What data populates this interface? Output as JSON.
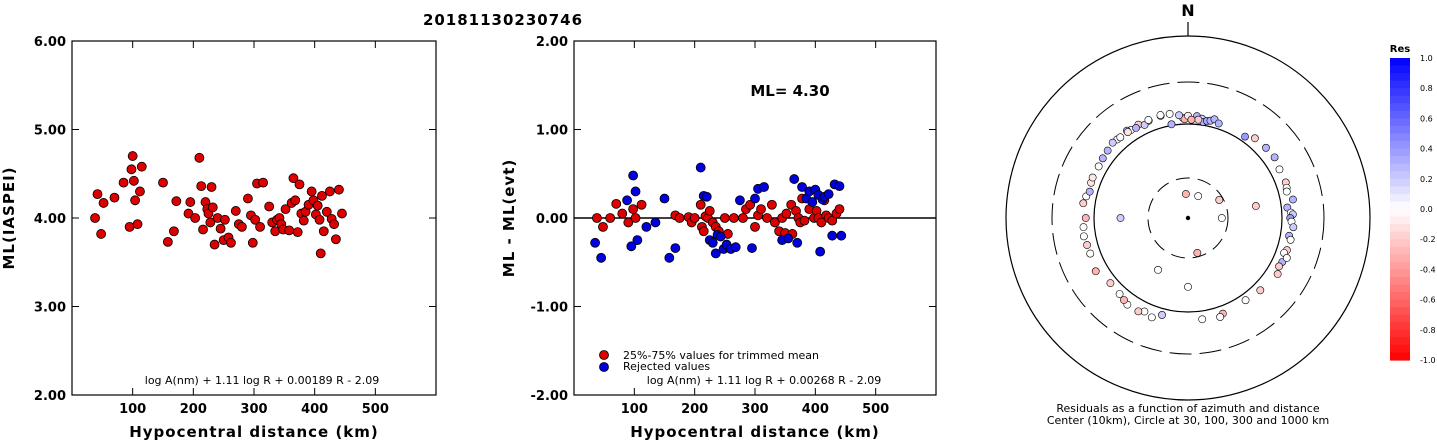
{
  "event_id": "20181130230746",
  "chart_data": [
    {
      "type": "scatter",
      "ylabel": "ML(IASPEI)",
      "xlabel": "Hypocentral distance (km)",
      "xlim": [
        0,
        600
      ],
      "ylim": [
        2,
        6
      ],
      "xticks": [
        "100",
        "200",
        "300",
        "400",
        "500"
      ],
      "yticks": [
        "2.00",
        "3.00",
        "4.00",
        "5.00",
        "6.00"
      ],
      "formula": "log A(nm) + 1.11 log R + 0.00189 R - 2.09",
      "color": "#dd0000",
      "points": [
        [
          38,
          4.0
        ],
        [
          42,
          4.27
        ],
        [
          48,
          3.82
        ],
        [
          52,
          4.17
        ],
        [
          70,
          4.23
        ],
        [
          85,
          4.4
        ],
        [
          95,
          3.9
        ],
        [
          98,
          4.55
        ],
        [
          100,
          4.7
        ],
        [
          102,
          4.42
        ],
        [
          104,
          4.2
        ],
        [
          108,
          3.93
        ],
        [
          112,
          4.3
        ],
        [
          115,
          4.58
        ],
        [
          150,
          4.4
        ],
        [
          158,
          3.73
        ],
        [
          168,
          3.85
        ],
        [
          172,
          4.19
        ],
        [
          192,
          4.05
        ],
        [
          195,
          4.18
        ],
        [
          203,
          4.0
        ],
        [
          210,
          4.68
        ],
        [
          213,
          4.36
        ],
        [
          216,
          3.87
        ],
        [
          220,
          4.18
        ],
        [
          223,
          4.1
        ],
        [
          225,
          4.05
        ],
        [
          228,
          3.95
        ],
        [
          230,
          4.35
        ],
        [
          232,
          4.12
        ],
        [
          235,
          3.7
        ],
        [
          240,
          4.0
        ],
        [
          245,
          3.88
        ],
        [
          250,
          3.75
        ],
        [
          252,
          3.98
        ],
        [
          258,
          3.78
        ],
        [
          262,
          3.72
        ],
        [
          270,
          4.08
        ],
        [
          275,
          3.93
        ],
        [
          280,
          3.9
        ],
        [
          290,
          4.22
        ],
        [
          295,
          4.03
        ],
        [
          298,
          3.72
        ],
        [
          302,
          3.98
        ],
        [
          305,
          4.39
        ],
        [
          310,
          3.9
        ],
        [
          315,
          4.4
        ],
        [
          325,
          4.13
        ],
        [
          330,
          3.95
        ],
        [
          335,
          3.85
        ],
        [
          338,
          3.98
        ],
        [
          342,
          4.0
        ],
        [
          345,
          3.93
        ],
        [
          348,
          3.87
        ],
        [
          352,
          4.1
        ],
        [
          358,
          3.86
        ],
        [
          362,
          4.17
        ],
        [
          365,
          4.45
        ],
        [
          368,
          4.2
        ],
        [
          372,
          3.84
        ],
        [
          375,
          4.38
        ],
        [
          378,
          4.05
        ],
        [
          382,
          3.97
        ],
        [
          385,
          4.07
        ],
        [
          390,
          4.15
        ],
        [
          395,
          4.3
        ],
        [
          398,
          4.2
        ],
        [
          402,
          4.04
        ],
        [
          405,
          4.14
        ],
        [
          408,
          3.98
        ],
        [
          410,
          3.6
        ],
        [
          412,
          4.25
        ],
        [
          415,
          3.85
        ],
        [
          420,
          4.07
        ],
        [
          425,
          4.3
        ],
        [
          428,
          3.99
        ],
        [
          432,
          3.93
        ],
        [
          435,
          3.76
        ],
        [
          440,
          4.32
        ],
        [
          445,
          4.05
        ]
      ]
    },
    {
      "type": "scatter",
      "ylabel": "ML - ML(evt)",
      "xlabel": "Hypocentral distance (km)",
      "xlim": [
        0,
        600
      ],
      "ylim": [
        -2,
        2
      ],
      "xticks": [
        "100",
        "200",
        "300",
        "400",
        "500"
      ],
      "yticks": [
        "-2.00",
        "-1.00",
        "0.00",
        "1.00",
        "2.00"
      ],
      "annotation": "ML=  4.30",
      "formula": "log A(nm) + 1.11 log R + 0.00268 R - 2.09",
      "legend": [
        "25%-75% values for trimmed mean",
        "Rejected values"
      ],
      "series": [
        {
          "name": "25%-75% values for trimmed mean",
          "color": "#dd0000",
          "points": [
            [
              38,
              0.0
            ],
            [
              48,
              -0.1
            ],
            [
              60,
              0.0
            ],
            [
              70,
              0.16
            ],
            [
              80,
              0.05
            ],
            [
              90,
              -0.05
            ],
            [
              98,
              0.1
            ],
            [
              102,
              0.0
            ],
            [
              112,
              0.15
            ],
            [
              168,
              0.03
            ],
            [
              175,
              0.0
            ],
            [
              190,
              0.01
            ],
            [
              195,
              -0.05
            ],
            [
              200,
              0.0
            ],
            [
              210,
              0.15
            ],
            [
              212,
              -0.1
            ],
            [
              215,
              -0.15
            ],
            [
              218,
              0.02
            ],
            [
              222,
              0.0
            ],
            [
              225,
              0.08
            ],
            [
              230,
              -0.05
            ],
            [
              235,
              -0.1
            ],
            [
              240,
              -0.15
            ],
            [
              250,
              0.0
            ],
            [
              255,
              -0.18
            ],
            [
              265,
              0.0
            ],
            [
              280,
              0.0
            ],
            [
              285,
              0.1
            ],
            [
              292,
              0.15
            ],
            [
              300,
              -0.1
            ],
            [
              305,
              0.03
            ],
            [
              310,
              0.1
            ],
            [
              320,
              0.0
            ],
            [
              328,
              0.15
            ],
            [
              333,
              -0.05
            ],
            [
              340,
              -0.15
            ],
            [
              345,
              0.0
            ],
            [
              350,
              -0.17
            ],
            [
              352,
              0.05
            ],
            [
              360,
              0.15
            ],
            [
              362,
              -0.18
            ],
            [
              368,
              0.08
            ],
            [
              372,
              0.0
            ],
            [
              375,
              -0.05
            ],
            [
              378,
              0.22
            ],
            [
              382,
              -0.03
            ],
            [
              390,
              0.1
            ],
            [
              398,
              0.0
            ],
            [
              402,
              0.08
            ],
            [
              405,
              0.0
            ],
            [
              410,
              -0.05
            ],
            [
              415,
              0.2
            ],
            [
              418,
              0.03
            ],
            [
              422,
              0.0
            ],
            [
              428,
              -0.03
            ],
            [
              435,
              0.05
            ],
            [
              440,
              0.1
            ]
          ]
        },
        {
          "name": "Rejected values",
          "color": "#0000dd",
          "points": [
            [
              35,
              -0.28
            ],
            [
              45,
              -0.45
            ],
            [
              88,
              0.2
            ],
            [
              95,
              -0.32
            ],
            [
              98,
              0.48
            ],
            [
              102,
              0.3
            ],
            [
              105,
              -0.25
            ],
            [
              120,
              -0.1
            ],
            [
              135,
              -0.05
            ],
            [
              150,
              0.22
            ],
            [
              158,
              -0.45
            ],
            [
              168,
              -0.34
            ],
            [
              210,
              0.57
            ],
            [
              215,
              0.25
            ],
            [
              220,
              0.24
            ],
            [
              225,
              -0.25
            ],
            [
              230,
              -0.28
            ],
            [
              235,
              -0.4
            ],
            [
              238,
              -0.19
            ],
            [
              243,
              -0.21
            ],
            [
              248,
              -0.35
            ],
            [
              253,
              -0.3
            ],
            [
              260,
              -0.35
            ],
            [
              268,
              -0.33
            ],
            [
              275,
              0.2
            ],
            [
              295,
              -0.34
            ],
            [
              300,
              0.22
            ],
            [
              305,
              0.33
            ],
            [
              315,
              0.35
            ],
            [
              345,
              -0.25
            ],
            [
              355,
              -0.23
            ],
            [
              365,
              0.44
            ],
            [
              370,
              -0.28
            ],
            [
              378,
              0.35
            ],
            [
              385,
              0.22
            ],
            [
              390,
              0.3
            ],
            [
              395,
              0.18
            ],
            [
              400,
              0.32
            ],
            [
              405,
              0.26
            ],
            [
              408,
              -0.38
            ],
            [
              412,
              0.21
            ],
            [
              415,
              0.24
            ],
            [
              422,
              0.27
            ],
            [
              428,
              -0.2
            ],
            [
              432,
              0.38
            ],
            [
              440,
              0.36
            ],
            [
              443,
              -0.2
            ]
          ]
        }
      ]
    },
    {
      "type": "scatter",
      "projection": "polar",
      "north_label": "N",
      "caption_1": "Residuals as a function of azimuth and distance",
      "caption_2": "Center (10km), Circle at 30, 100, 300 and 1000 km",
      "colorbar": {
        "title": "Res",
        "ticks": [
          "1.0",
          "0.8",
          "0.6",
          "0.4",
          "0.2",
          "0.0",
          "-0.2",
          "-0.4",
          "-0.6",
          "-0.8",
          "-1.0"
        ],
        "max_color": "#0000ff",
        "min_color": "#ff0000"
      },
      "points": [
        [
          5,
          380,
          0.3
        ],
        [
          8,
          360,
          0.2
        ],
        [
          9,
          330,
          0.3
        ],
        [
          11,
          345,
          0.35
        ],
        [
          13,
          355,
          0.3
        ],
        [
          15,
          380,
          0.3
        ],
        [
          18,
          350,
          0.3
        ],
        [
          6,
          345,
          -0.2
        ],
        [
          -3,
          360,
          0.0
        ],
        [
          -2,
          345,
          -0.3
        ],
        [
          0,
          380,
          -0.1
        ],
        [
          2,
          340,
          -0.3
        ],
        [
          -10,
          310,
          0.3
        ],
        [
          -15,
          420,
          0.0
        ],
        [
          -22,
          410,
          0.0
        ],
        [
          -28,
          420,
          -0.2
        ],
        [
          -25,
          385,
          0.2
        ],
        [
          -33,
          410,
          0.0
        ],
        [
          -35,
          430,
          0.3
        ],
        [
          -42,
          420,
          0.0
        ],
        [
          35,
          350,
          0.4
        ],
        [
          40,
          400,
          -0.2
        ],
        [
          48,
          410,
          0.3
        ],
        [
          55,
          420,
          0.3
        ],
        [
          62,
          395,
          0.0
        ],
        [
          70,
          400,
          -0.2
        ],
        [
          73,
          390,
          0.0
        ],
        [
          75,
          380,
          0.0
        ],
        [
          80,
          430,
          0.3
        ],
        [
          84,
          355,
          0.3
        ],
        [
          87,
          390,
          0.0
        ],
        [
          88,
          410,
          0.2
        ],
        [
          90,
          380,
          0.4
        ],
        [
          92,
          395,
          0.0
        ],
        [
          95,
          420,
          0.2
        ],
        [
          100,
          385,
          0.3
        ],
        [
          102,
          410,
          0.0
        ],
        [
          108,
          400,
          -0.2
        ],
        [
          110,
          380,
          0.0
        ],
        [
          115,
          400,
          0.3
        ],
        [
          112,
          430,
          0.0
        ],
        [
          118,
          390,
          -0.2
        ],
        [
          122,
          420,
          -0.2
        ],
        [
          135,
          380,
          -0.2
        ],
        [
          145,
          360,
          0.0
        ],
        [
          160,
          375,
          -0.3
        ],
        [
          162,
          400,
          0.0
        ],
        [
          172,
          380,
          0.0
        ],
        [
          195,
          360,
          0.2
        ],
        [
          200,
          420,
          0.0
        ],
        [
          205,
          390,
          0.0
        ],
        [
          208,
          420,
          -0.2
        ],
        [
          215,
          420,
          0.0
        ],
        [
          218,
          400,
          -0.3
        ],
        [
          222,
          380,
          0.0
        ],
        [
          230,
          370,
          -0.2
        ],
        [
          240,
          430,
          -0.3
        ],
        [
          250,
          400,
          0.0
        ],
        [
          255,
          405,
          -0.2
        ],
        [
          260,
          420,
          0.0
        ],
        [
          265,
          410,
          0.0
        ],
        [
          270,
          380,
          -0.3
        ],
        [
          278,
          420,
          -0.2
        ],
        [
          282,
          400,
          0.0
        ],
        [
          285,
          375,
          0.3
        ],
        [
          290,
          390,
          -0.1
        ],
        [
          293,
          395,
          -0.1
        ],
        [
          300,
          390,
          0.0
        ],
        [
          305,
          400,
          0.3
        ],
        [
          310,
          410,
          0.3
        ],
        [
          315,
          430,
          0.2
        ],
        [
          320,
          415,
          0.0
        ],
        [
          325,
          410,
          -0.1
        ],
        [
          330,
          400,
          0.3
        ],
        [
          338,
          420,
          0.0
        ],
        [
          345,
          430,
          0.0
        ],
        [
          350,
          420,
          0.0
        ],
        [
          355,
          390,
          0.2
        ],
        [
          80,
          180,
          -0.2
        ],
        [
          180,
          180,
          0.0
        ],
        [
          270,
          175,
          0.2
        ],
        [
          -5,
          40,
          -0.3
        ],
        [
          210,
          150,
          0.0
        ],
        [
          165,
          80,
          -0.3
        ],
        [
          90,
          70,
          0.0
        ],
        [
          25,
          40,
          0.0
        ],
        [
          60,
          80,
          -0.2
        ]
      ]
    }
  ]
}
